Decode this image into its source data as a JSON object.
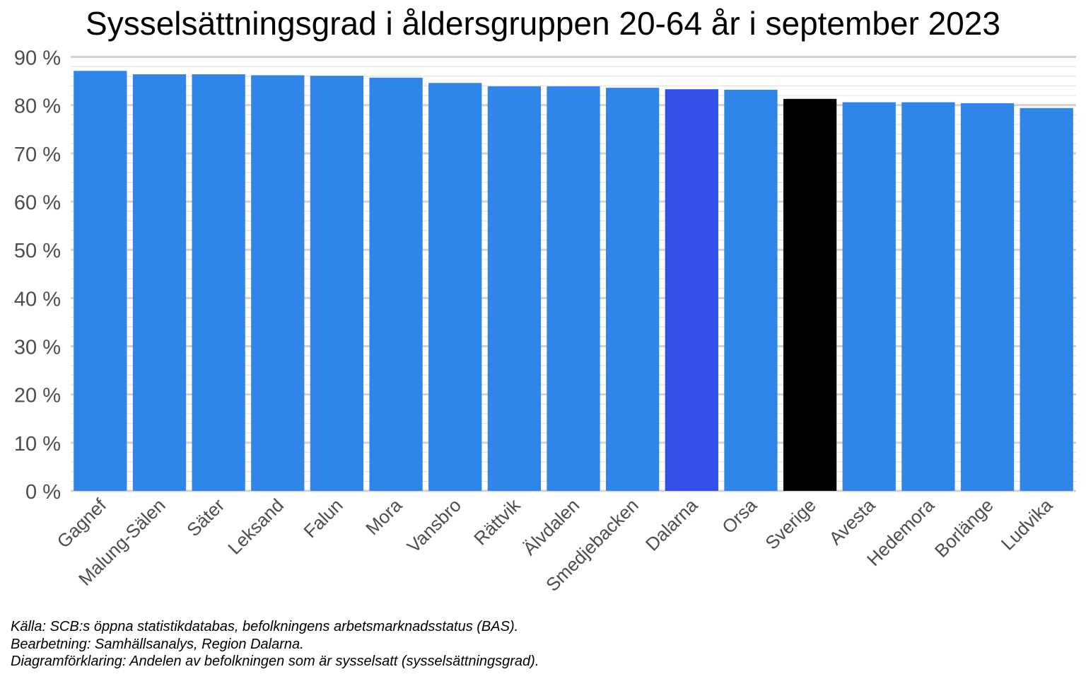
{
  "chart_data": {
    "type": "bar",
    "title": "Sysselsättningsgrad i åldersgruppen 20-64 år i september 2023",
    "xlabel": "",
    "ylabel": "",
    "ylim": [
      0,
      90
    ],
    "yticks": [
      "0 %",
      "10 %",
      "20 %",
      "30 %",
      "40 %",
      "50 %",
      "60 %",
      "70 %",
      "80 %",
      "90 %"
    ],
    "grid": true,
    "categories": [
      "Gagnef",
      "Malung-Sälen",
      "Säter",
      "Leksand",
      "Falun",
      "Mora",
      "Vansbro",
      "Rättvik",
      "Älvdalen",
      "Smedjebacken",
      "Dalarna",
      "Orsa",
      "Sverige",
      "Avesta",
      "Hedemora",
      "Borlänge",
      "Ludvika"
    ],
    "values": [
      87.1,
      86.4,
      86.4,
      86.2,
      86.1,
      85.7,
      84.6,
      83.9,
      83.9,
      83.6,
      83.3,
      83.2,
      81.3,
      80.6,
      80.6,
      80.4,
      79.4
    ],
    "colors": {
      "default": "#2f86e8",
      "Dalarna": "#324fe8",
      "Sverige": "#000000"
    }
  },
  "footnotes": {
    "source": "Källa: SCB:s öppna statistikdatabas, befolkningens arbetsmarknadsstatus (BAS).",
    "processing": "Bearbetning: Samhällsanalys, Region Dalarna.",
    "explanation": "Diagramförklaring: Andelen av befolkningen som är sysselsatt (sysselsättningsgrad)."
  }
}
